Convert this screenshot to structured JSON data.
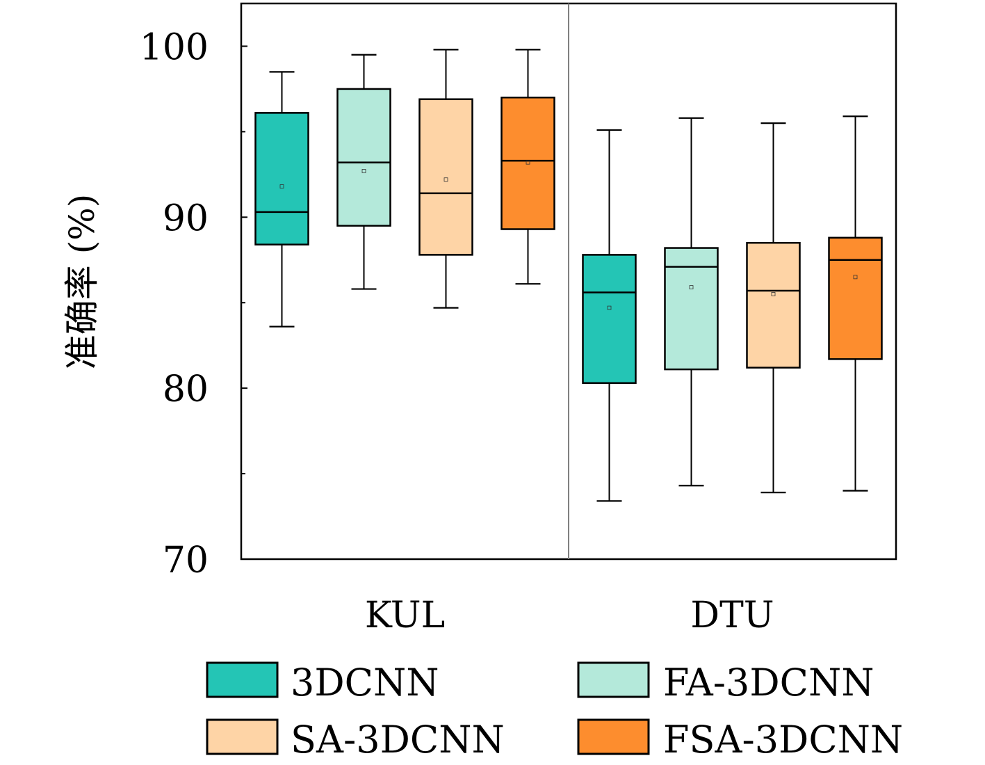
{
  "chart_data": {
    "type": "box",
    "ylabel": "准确率 (%)",
    "xlabel": "",
    "ylim": [
      70,
      102.5
    ],
    "yticks": [
      70,
      80,
      90,
      100
    ],
    "ytick_labels": [
      "70",
      "80",
      "90",
      "100"
    ],
    "minor_yticks": [
      75,
      85,
      95
    ],
    "grid": false,
    "legend_position": "bottom",
    "categories": [
      "KUL",
      "DTU"
    ],
    "series": [
      {
        "name": "3DCNN",
        "color": "#24c5b5",
        "boxes": [
          {
            "category": "KUL",
            "whisker_low": 83.6,
            "q1": 88.4,
            "median": 90.3,
            "q3": 96.1,
            "whisker_high": 98.5,
            "mean": 91.8
          },
          {
            "category": "DTU",
            "whisker_low": 73.4,
            "q1": 80.3,
            "median": 85.6,
            "q3": 87.8,
            "whisker_high": 95.1,
            "mean": 84.7
          }
        ]
      },
      {
        "name": "FA-3DCNN",
        "color": "#b4e9da",
        "boxes": [
          {
            "category": "KUL",
            "whisker_low": 85.8,
            "q1": 89.5,
            "median": 93.2,
            "q3": 97.5,
            "whisker_high": 99.5,
            "mean": 92.7
          },
          {
            "category": "DTU",
            "whisker_low": 74.3,
            "q1": 81.1,
            "median": 87.1,
            "q3": 88.2,
            "whisker_high": 95.8,
            "mean": 85.9
          }
        ]
      },
      {
        "name": "SA-3DCNN",
        "color": "#fed4a6",
        "boxes": [
          {
            "category": "KUL",
            "whisker_low": 84.7,
            "q1": 87.8,
            "median": 91.4,
            "q3": 96.9,
            "whisker_high": 99.8,
            "mean": 92.2
          },
          {
            "category": "DTU",
            "whisker_low": 73.9,
            "q1": 81.2,
            "median": 85.7,
            "q3": 88.5,
            "whisker_high": 95.5,
            "mean": 85.5
          }
        ]
      },
      {
        "name": "FSA-3DCNN",
        "color": "#fd8d2e",
        "boxes": [
          {
            "category": "KUL",
            "whisker_low": 86.1,
            "q1": 89.3,
            "median": 93.3,
            "q3": 97.0,
            "whisker_high": 99.8,
            "mean": 93.2
          },
          {
            "category": "DTU",
            "whisker_low": 74.0,
            "q1": 81.7,
            "median": 87.5,
            "q3": 88.8,
            "whisker_high": 95.9,
            "mean": 86.5
          }
        ]
      }
    ]
  }
}
